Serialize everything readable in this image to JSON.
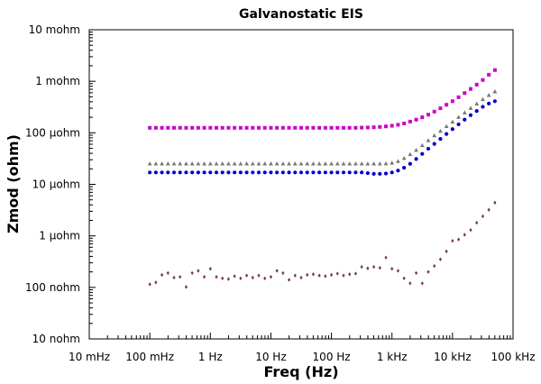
{
  "chart_data": {
    "type": "scatter",
    "title": "Galvanostatic EIS",
    "xlabel": "Freq (Hz)",
    "ylabel": "Zmod (ohm)",
    "x_scale": "log",
    "y_scale": "log",
    "xlim": [
      0.01,
      100000
    ],
    "ylim": [
      1e-08,
      0.01
    ],
    "grid": false,
    "x_ticks": [
      {
        "value": 0.01,
        "label": "10 mHz"
      },
      {
        "value": 0.1,
        "label": "100 mHz"
      },
      {
        "value": 1,
        "label": "1 Hz"
      },
      {
        "value": 10,
        "label": "10 Hz"
      },
      {
        "value": 100,
        "label": "100 Hz"
      },
      {
        "value": 1000,
        "label": "1 kHz"
      },
      {
        "value": 10000,
        "label": "10 kHz"
      },
      {
        "value": 100000,
        "label": "100 kHz"
      }
    ],
    "y_ticks": [
      {
        "value": 1e-08,
        "label": "10 nohm"
      },
      {
        "value": 1e-07,
        "label": "100 nohm"
      },
      {
        "value": 1e-06,
        "label": "1 µohm"
      },
      {
        "value": 1e-05,
        "label": "10 µohm"
      },
      {
        "value": 0.0001,
        "label": "100 µohm"
      },
      {
        "value": 0.001,
        "label": "1 mohm"
      },
      {
        "value": 0.01,
        "label": "10 mohm"
      }
    ],
    "series": [
      {
        "color": "#cc00cc",
        "marker": "square",
        "x": [
          0.1,
          0.1259,
          0.1585,
          0.1995,
          0.2512,
          0.3162,
          0.3981,
          0.5012,
          0.631,
          0.7943,
          1,
          1.259,
          1.585,
          1.995,
          2.512,
          3.162,
          3.981,
          5.012,
          6.31,
          7.943,
          10,
          12.59,
          15.85,
          19.95,
          25.12,
          31.62,
          39.81,
          50.12,
          63.1,
          79.43,
          100,
          125.9,
          158.5,
          199.5,
          251.2,
          316.2,
          398.1,
          501.2,
          631,
          794.3,
          1000,
          1259,
          1585,
          1995,
          2512,
          3162,
          3981,
          5012,
          6310,
          7943,
          10000,
          12589,
          15849,
          19953,
          25119,
          31623,
          39811,
          50119
        ],
        "y": [
          0.000125,
          0.000125,
          0.000125,
          0.000125,
          0.000125,
          0.000125,
          0.000125,
          0.000125,
          0.000125,
          0.000125,
          0.000125,
          0.000125,
          0.000125,
          0.000125,
          0.000125,
          0.000125,
          0.000125,
          0.000125,
          0.000125,
          0.000125,
          0.000125,
          0.000125,
          0.000125,
          0.000125,
          0.000125,
          0.000125,
          0.000125,
          0.000125,
          0.000125,
          0.000125,
          0.000125,
          0.000125,
          0.000125,
          0.000125,
          0.000125,
          0.000126,
          0.000127,
          0.000128,
          0.00013,
          0.000133,
          0.000137,
          0.000143,
          0.000152,
          0.000165,
          0.00018,
          0.0002,
          0.000225,
          0.000258,
          0.000299,
          0.00035,
          0.00041,
          0.00049,
          0.00059,
          0.00071,
          0.00086,
          0.00106,
          0.00134,
          0.00165
        ]
      },
      {
        "color": "#777777",
        "marker": "triangle",
        "x": [
          0.1,
          0.1259,
          0.1585,
          0.1995,
          0.2512,
          0.3162,
          0.3981,
          0.5012,
          0.631,
          0.7943,
          1,
          1.259,
          1.585,
          1.995,
          2.512,
          3.162,
          3.981,
          5.012,
          6.31,
          7.943,
          10,
          12.59,
          15.85,
          19.95,
          25.12,
          31.62,
          39.81,
          50.12,
          63.1,
          79.43,
          100,
          125.9,
          158.5,
          199.5,
          251.2,
          316.2,
          398.1,
          501.2,
          631,
          794.3,
          1000,
          1259,
          1585,
          1995,
          2512,
          3162,
          3981,
          5012,
          6310,
          7943,
          10000,
          12589,
          15849,
          19953,
          25119,
          31623,
          39811,
          50119
        ],
        "y": [
          2.5e-05,
          2.5e-05,
          2.5e-05,
          2.5e-05,
          2.5e-05,
          2.5e-05,
          2.5e-05,
          2.5e-05,
          2.5e-05,
          2.5e-05,
          2.5e-05,
          2.5e-05,
          2.5e-05,
          2.5e-05,
          2.5e-05,
          2.5e-05,
          2.5e-05,
          2.5e-05,
          2.5e-05,
          2.5e-05,
          2.5e-05,
          2.5e-05,
          2.5e-05,
          2.5e-05,
          2.5e-05,
          2.5e-05,
          2.5e-05,
          2.5e-05,
          2.5e-05,
          2.5e-05,
          2.5e-05,
          2.5e-05,
          2.5e-05,
          2.5e-05,
          2.5e-05,
          2.5e-05,
          2.5e-05,
          2.5e-05,
          2.5e-05,
          2.52e-05,
          2.6e-05,
          2.8e-05,
          3.2e-05,
          3.8e-05,
          4.6e-05,
          5.7e-05,
          7.1e-05,
          8.8e-05,
          0.000108,
          0.000133,
          0.000163,
          0.0002,
          0.000245,
          0.0003,
          0.000365,
          0.000445,
          0.000535,
          0.00063
        ]
      },
      {
        "color": "#0000cc",
        "marker": "circle",
        "x": [
          0.1,
          0.1259,
          0.1585,
          0.1995,
          0.2512,
          0.3162,
          0.3981,
          0.5012,
          0.631,
          0.7943,
          1,
          1.259,
          1.585,
          1.995,
          2.512,
          3.162,
          3.981,
          5.012,
          6.31,
          7.943,
          10,
          12.59,
          15.85,
          19.95,
          25.12,
          31.62,
          39.81,
          50.12,
          63.1,
          79.43,
          100,
          125.9,
          158.5,
          199.5,
          251.2,
          316.2,
          398.1,
          501.2,
          631,
          794.3,
          1000,
          1259,
          1585,
          1995,
          2512,
          3162,
          3981,
          5012,
          6310,
          7943,
          10000,
          12589,
          15849,
          19953,
          25119,
          31623,
          39811,
          50119
        ],
        "y": [
          1.7e-05,
          1.7e-05,
          1.7e-05,
          1.7e-05,
          1.7e-05,
          1.7e-05,
          1.7e-05,
          1.7e-05,
          1.7e-05,
          1.7e-05,
          1.7e-05,
          1.7e-05,
          1.7e-05,
          1.7e-05,
          1.7e-05,
          1.7e-05,
          1.7e-05,
          1.7e-05,
          1.7e-05,
          1.7e-05,
          1.7e-05,
          1.7e-05,
          1.7e-05,
          1.7e-05,
          1.7e-05,
          1.7e-05,
          1.7e-05,
          1.7e-05,
          1.7e-05,
          1.7e-05,
          1.7e-05,
          1.7e-05,
          1.7e-05,
          1.7e-05,
          1.7e-05,
          1.7e-05,
          1.65e-05,
          1.6e-05,
          1.6e-05,
          1.62e-05,
          1.7e-05,
          1.85e-05,
          2.1e-05,
          2.5e-05,
          3.1e-05,
          3.9e-05,
          4.9e-05,
          6.1e-05,
          7.6e-05,
          9.5e-05,
          0.000118,
          0.000146,
          0.00018,
          0.00022,
          0.000265,
          0.00032,
          0.00037,
          0.00041
        ]
      },
      {
        "color": "#7a3b3b",
        "marker": "diamond",
        "x": [
          0.1,
          0.1259,
          0.1585,
          0.1995,
          0.2512,
          0.3162,
          0.3981,
          0.5012,
          0.631,
          0.7943,
          1,
          1.259,
          1.585,
          1.995,
          2.512,
          3.162,
          3.981,
          5.012,
          6.31,
          7.943,
          10,
          12.59,
          15.85,
          19.95,
          25.12,
          31.62,
          39.81,
          50.12,
          63.1,
          79.43,
          100,
          125.9,
          158.5,
          199.5,
          251.2,
          316.2,
          398.1,
          501.2,
          631,
          794.3,
          1000,
          1259,
          1585,
          1995,
          2512,
          3162,
          3981,
          5012,
          6310,
          7943,
          10000,
          12589,
          15849,
          19953,
          25119,
          31623,
          39811,
          50119
        ],
        "y": [
          1.15e-07,
          1.25e-07,
          1.75e-07,
          1.9e-07,
          1.55e-07,
          1.6e-07,
          1.02e-07,
          1.9e-07,
          2.1e-07,
          1.6e-07,
          2.3e-07,
          1.6e-07,
          1.5e-07,
          1.45e-07,
          1.65e-07,
          1.5e-07,
          1.7e-07,
          1.55e-07,
          1.7e-07,
          1.5e-07,
          1.6e-07,
          2.1e-07,
          1.9e-07,
          1.4e-07,
          1.7e-07,
          1.55e-07,
          1.75e-07,
          1.8e-07,
          1.7e-07,
          1.65e-07,
          1.75e-07,
          1.85e-07,
          1.7e-07,
          1.8e-07,
          1.85e-07,
          2.5e-07,
          2.35e-07,
          2.5e-07,
          2.4e-07,
          3.8e-07,
          2.3e-07,
          2.1e-07,
          1.5e-07,
          1.2e-07,
          1.9e-07,
          1.2e-07,
          2e-07,
          2.6e-07,
          3.5e-07,
          5e-07,
          8e-07,
          8.5e-07,
          1.05e-06,
          1.3e-06,
          1.8e-06,
          2.4e-06,
          3.2e-06,
          4.4e-06
        ]
      }
    ]
  }
}
